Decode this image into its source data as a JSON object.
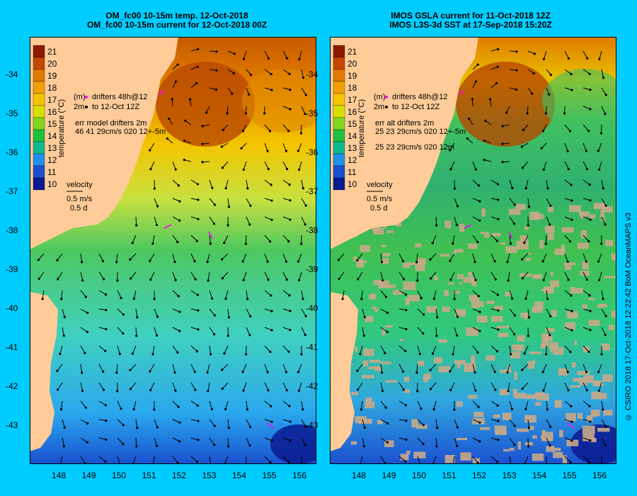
{
  "panels": [
    {
      "title_line1": "OM_fc00 10-15m temp. 12-Oct-2018",
      "title_line2": "OM_fc00 10-15m current for 12-Oct-2018 00Z",
      "colorbar_label": "temperature (°C)",
      "legend_lines": [
        "(m)",
        "drifters 48h@12",
        "2m",
        "to 12-Oct 12Z",
        "err model drifters 2m",
        "46 41 29cm/s 020 12+-5m"
      ],
      "velocity_title": "velocity",
      "velocity_speed": "0.5 m/s",
      "velocity_days": "0.5 d",
      "style": "model"
    },
    {
      "title_line1": "IMOS GSLA current for 11-Oct-2018 12Z",
      "title_line2": "IMOS L3S-3d SST at 17-Sep-2018 15:20Z",
      "colorbar_label": "temperature (°C)",
      "legend_lines": [
        "(m)",
        "drifters 48h@12",
        "2m",
        "to 12-Oct 12Z",
        "err alt drifters 2m",
        "25 23 29cm/s 020 12+-5m",
        "25 23 29cm/s 020 12m"
      ],
      "velocity_title": "velocity",
      "velocity_speed": "0.5 m/s",
      "velocity_days": "0.5 d",
      "style": "obs"
    }
  ],
  "colorbar_ticks": [
    "21",
    "20",
    "19",
    "18",
    "17",
    "16",
    "15",
    "14",
    "13",
    "12",
    "11",
    "10"
  ],
  "colorbar_colors": [
    "#8b1a00",
    "#c54800",
    "#e07a00",
    "#f0a000",
    "#f4c400",
    "#d8e000",
    "#80d820",
    "#20c040",
    "#10b890",
    "#2090e8",
    "#1a50d0",
    "#0a1a90"
  ],
  "y_ticks": [
    "-34",
    "-35",
    "-36",
    "-37",
    "-38",
    "-39",
    "-40",
    "-41",
    "-42",
    "-43"
  ],
  "x_ticks": [
    "148",
    "149",
    "150",
    "151",
    "152",
    "153",
    "154",
    "155",
    "156"
  ],
  "credit": "© CSIRO 2018   17-Oct-2018 12:22:42 BoM OceanMAPS v3",
  "colors": {
    "background": "#00ccff",
    "land": "#ffcc99",
    "drifter": "#ff00ff"
  }
}
